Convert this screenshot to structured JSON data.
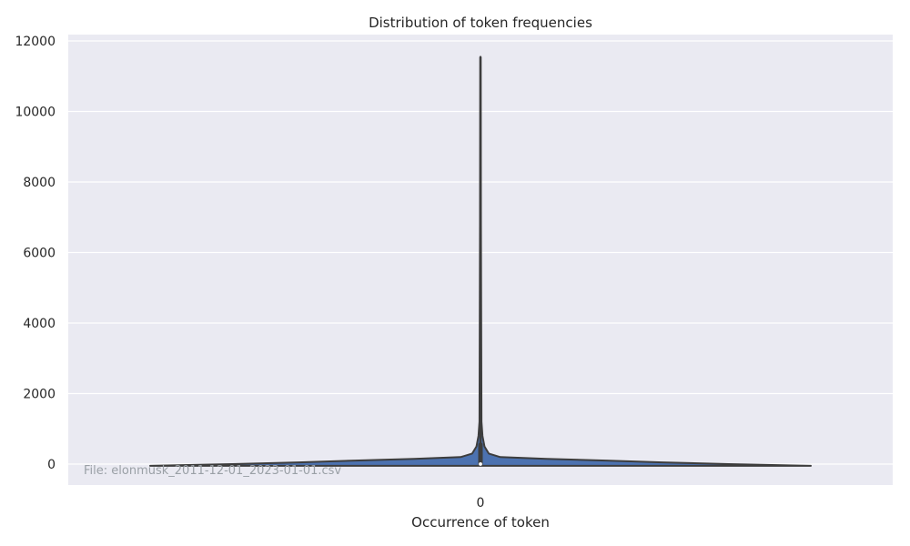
{
  "chart_data": {
    "type": "violin",
    "title": "Distribution of token frequencies",
    "xlabel": "Occurrence of token",
    "ylabel": "",
    "categories": [
      "0"
    ],
    "x_tick_labels": [
      "0"
    ],
    "ylim": [
      -600,
      12200
    ],
    "y_ticks": [
      0,
      2000,
      4000,
      6000,
      8000,
      10000,
      12000
    ],
    "y_tick_labels": [
      "0",
      "2000",
      "4000",
      "6000",
      "8000",
      "10000",
      "12000"
    ],
    "grid": true,
    "stats": {
      "min": 1,
      "q1": 1,
      "median": 1,
      "q3": 3,
      "whisker_high": 550,
      "max": 11550
    },
    "density_profile": [
      {
        "y": -50,
        "width": 1.0
      },
      {
        "y": 0,
        "width": 0.75
      },
      {
        "y": 50,
        "width": 0.55
      },
      {
        "y": 100,
        "width": 0.38
      },
      {
        "y": 150,
        "width": 0.2
      },
      {
        "y": 200,
        "width": 0.06
      },
      {
        "y": 300,
        "width": 0.025
      },
      {
        "y": 500,
        "width": 0.012
      },
      {
        "y": 800,
        "width": 0.006
      },
      {
        "y": 1200,
        "width": 0.003
      },
      {
        "y": 11550,
        "width": 0.0
      }
    ],
    "fill_color": "#4c72b0",
    "edge_color": "#3d3d3d",
    "annotation": "File: elonmusk_2011-12-01_2023-01-01.csv"
  },
  "colors": {
    "plot_background": "#eaeaf2",
    "grid": "#ffffff",
    "text": "#262626"
  }
}
